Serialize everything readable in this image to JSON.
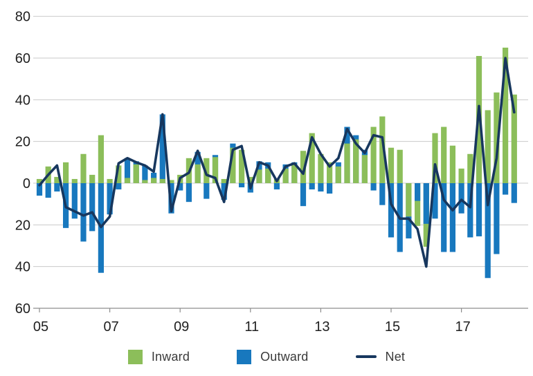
{
  "figure": {
    "background": "#ffffff"
  },
  "axes": {
    "y_ticks": [
      {
        "value": 80,
        "label": "80"
      },
      {
        "value": 60,
        "label": "60"
      },
      {
        "value": 40,
        "label": "40"
      },
      {
        "value": 20,
        "label": "20"
      },
      {
        "value": 0,
        "label": "0"
      },
      {
        "value": -20,
        "label": "20"
      },
      {
        "value": -40,
        "label": "40"
      },
      {
        "value": -60,
        "label": "60"
      }
    ],
    "x_ticks": [
      {
        "index": 0,
        "label": "05"
      },
      {
        "index": 8,
        "label": "07"
      },
      {
        "index": 16,
        "label": "09"
      },
      {
        "index": 24,
        "label": "11"
      },
      {
        "index": 32,
        "label": "13"
      },
      {
        "index": 40,
        "label": "15"
      },
      {
        "index": 48,
        "label": "17"
      }
    ],
    "grid_color": "#c9c9c9",
    "axis_color": "#8c8c8c",
    "label_color": "#1f1f1f"
  },
  "legend": {
    "items": [
      {
        "label": "Inward",
        "type": "square"
      },
      {
        "label": "Outward",
        "type": "square"
      },
      {
        "label": "Net",
        "type": "line"
      }
    ]
  },
  "chart_data": {
    "type": "bar",
    "subtype": "overlay-bars-with-line",
    "title": "",
    "xlabel": "",
    "ylabel": "",
    "ylim": [
      -60,
      80
    ],
    "ytick_step": 20,
    "grid": true,
    "legend_position": "bottom",
    "note_y_axis": "negative ticks shown as absolute values",
    "x_tick_labels": [
      "05",
      "07",
      "09",
      "11",
      "13",
      "15",
      "17"
    ],
    "quarters": [
      "2005Q1",
      "2005Q2",
      "2005Q3",
      "2005Q4",
      "2006Q1",
      "2006Q2",
      "2006Q3",
      "2006Q4",
      "2007Q1",
      "2007Q2",
      "2007Q3",
      "2007Q4",
      "2008Q1",
      "2008Q2",
      "2008Q3",
      "2008Q4",
      "2009Q1",
      "2009Q2",
      "2009Q3",
      "2009Q4",
      "2010Q1",
      "2010Q2",
      "2010Q3",
      "2010Q4",
      "2011Q1",
      "2011Q2",
      "2011Q3",
      "2011Q4",
      "2012Q1",
      "2012Q2",
      "2012Q3",
      "2012Q4",
      "2013Q1",
      "2013Q2",
      "2013Q3",
      "2013Q4",
      "2014Q1",
      "2014Q2",
      "2014Q3",
      "2014Q4",
      "2015Q1",
      "2015Q2",
      "2015Q3",
      "2015Q4",
      "2016Q1",
      "2016Q2",
      "2016Q3",
      "2016Q4",
      "2017Q1",
      "2017Q2",
      "2017Q3",
      "2017Q4",
      "2018Q1",
      "2018Q2",
      "2018Q3"
    ],
    "series": [
      {
        "name": "Inward",
        "render": "bar",
        "color": "#8CBE5A",
        "values": [
          2,
          8,
          3,
          10,
          2,
          14,
          4,
          23,
          2,
          8.5,
          2.5,
          9,
          1.5,
          2.5,
          2,
          1.5,
          4,
          12,
          9,
          12,
          12.5,
          2,
          17,
          16,
          3,
          6.5,
          7,
          2,
          7,
          9,
          15.5,
          24,
          14,
          10,
          8,
          19,
          21,
          13.5,
          27,
          32,
          17,
          16,
          -16,
          -20.5,
          -30.5,
          24,
          27,
          18,
          7,
          14,
          61,
          35,
          43.5,
          65,
          42.5
        ]
      },
      {
        "name": "Outward",
        "render": "bar",
        "color": "#1878BE",
        "values": [
          -6,
          -7,
          -4,
          -21.5,
          -17,
          -28,
          -23,
          -43,
          -15,
          -3,
          12,
          10.5,
          8.5,
          5,
          33,
          -14.5,
          -3.5,
          -9,
          15,
          -7.5,
          13.5,
          -8,
          19,
          -2,
          -4.5,
          10.5,
          10,
          -3,
          9,
          10,
          -11,
          -3,
          -4,
          -5,
          10,
          27,
          23,
          16,
          -3.5,
          -10.5,
          -26,
          -33,
          -26.5,
          -8.5,
          -19.5,
          -17,
          -33,
          -33,
          -14.5,
          -26,
          -25.5,
          -45.5,
          -34,
          -5.5,
          -9.5
        ]
      },
      {
        "name": "Net",
        "render": "line",
        "color": "#17375E",
        "values": [
          -1,
          4,
          8.5,
          -11.5,
          -13.5,
          -15.5,
          -14,
          -21,
          -16,
          9.5,
          12,
          10,
          8.5,
          5.5,
          33,
          -13.5,
          2.5,
          5,
          15.5,
          4,
          2.5,
          -9,
          16,
          17.8,
          -2.5,
          10,
          8.5,
          1,
          8,
          9.5,
          4.5,
          22,
          14,
          8,
          12,
          26,
          19,
          14.5,
          23,
          22,
          -10,
          -17,
          -17,
          -22,
          -40,
          9,
          -8,
          -13,
          -8,
          -11.5,
          37,
          -10.5,
          12,
          60,
          34
        ]
      }
    ]
  }
}
